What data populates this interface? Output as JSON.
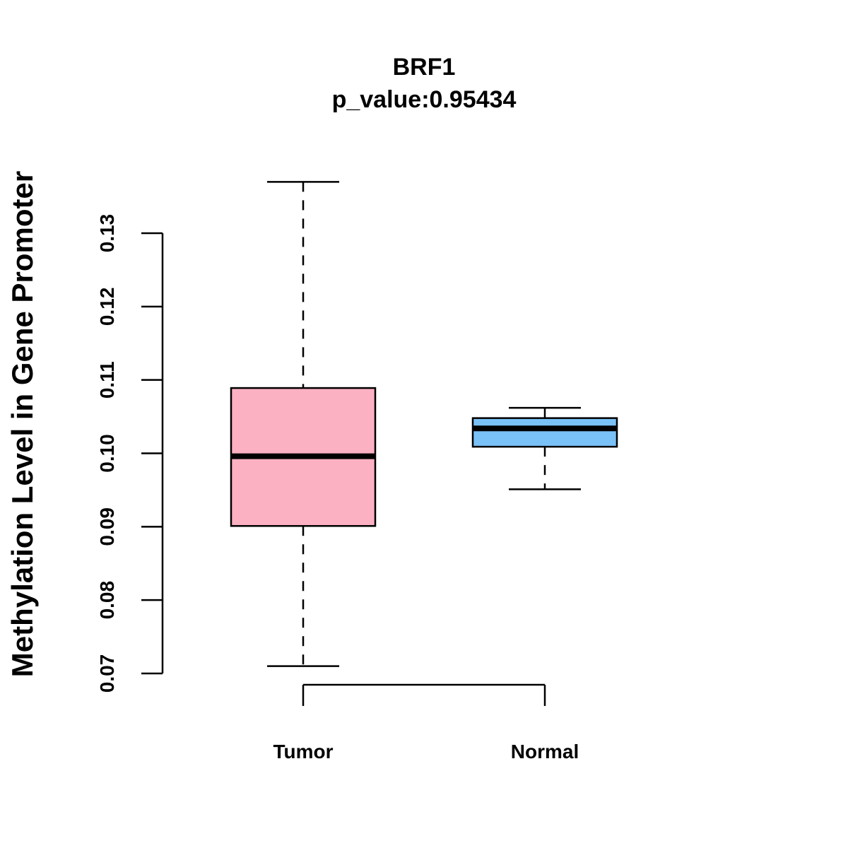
{
  "chart_data": {
    "type": "boxplot",
    "title": "BRF1",
    "subtitle": "p_value:0.95434",
    "xlabel": "",
    "ylabel": "Methylation Level in Gene Promoter",
    "ylim": [
      0.07,
      0.13
    ],
    "yticks": [
      {
        "value": 0.07,
        "label": "0.07"
      },
      {
        "value": 0.08,
        "label": "0.08"
      },
      {
        "value": 0.09,
        "label": "0.09"
      },
      {
        "value": 0.1,
        "label": "0.10"
      },
      {
        "value": 0.11,
        "label": "0.11"
      },
      {
        "value": 0.12,
        "label": "0.12"
      },
      {
        "value": 0.13,
        "label": "0.13"
      }
    ],
    "categories": [
      "Tumor",
      "Normal"
    ],
    "series": [
      {
        "name": "Tumor",
        "whisker_low": 0.071,
        "q1": 0.0901,
        "median": 0.0996,
        "q3": 0.1089,
        "whisker_high": 0.137,
        "color": "#FBB1C2"
      },
      {
        "name": "Normal",
        "whisker_low": 0.0951,
        "q1": 0.1009,
        "median": 0.1034,
        "q3": 0.1048,
        "whisker_high": 0.1062,
        "color": "#7AC1F7"
      }
    ],
    "grid": false,
    "legend": "none"
  }
}
